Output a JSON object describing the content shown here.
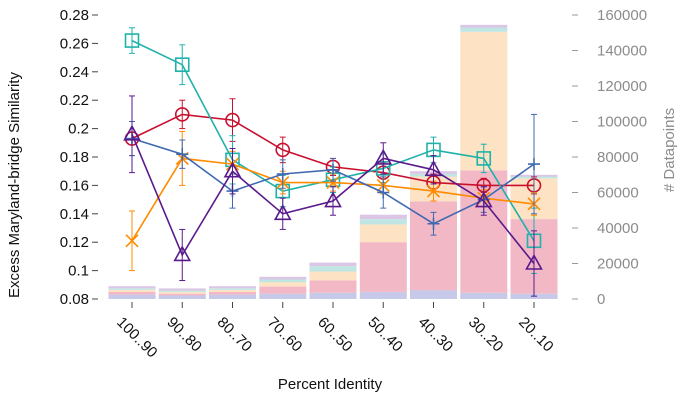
{
  "chart_data": {
    "type": "line",
    "title": "",
    "xlabel": "Percent Identity",
    "ylabel": "Excess Maryland-bridge Similarity",
    "y2label": "# Datapoints",
    "categories": [
      "100..90",
      "90..80",
      "80..70",
      "70..60",
      "60..50",
      "50..40",
      "40..30",
      "30..20",
      "20..10"
    ],
    "ylim": [
      0.08,
      0.28
    ],
    "yticks": [
      "0.08",
      "0.1",
      "0.12",
      "0.14",
      "0.16",
      "0.18",
      "0.2",
      "0.22",
      "0.24",
      "0.26",
      "0.28"
    ],
    "y2lim": [
      0,
      160000
    ],
    "y2ticks": [
      "0",
      "20000",
      "40000",
      "60000",
      "80000",
      "100000",
      "120000",
      "140000",
      "160000"
    ],
    "grid": false,
    "legend": "none",
    "series": [
      {
        "color": "#c8102e",
        "marker": "circle",
        "values": [
          0.193,
          0.21,
          0.206,
          0.185,
          0.173,
          0.169,
          0.162,
          0.16,
          0.16
        ],
        "errors": [
          0.012,
          0.01,
          0.015,
          0.009,
          0.006,
          0.007,
          0.006,
          0.005,
          0.006
        ]
      },
      {
        "color": "#20b2aa",
        "marker": "square",
        "values": [
          0.262,
          0.245,
          0.178,
          0.156,
          0.164,
          0.172,
          0.185,
          0.179,
          0.121
        ],
        "errors": [
          0.009,
          0.014,
          0.017,
          0.011,
          0.009,
          0.01,
          0.009,
          0.01,
          0.023
        ]
      },
      {
        "color": "#ff8c00",
        "marker": "x",
        "values": [
          0.121,
          0.179,
          0.175,
          0.162,
          0.162,
          0.16,
          0.156,
          0.151,
          0.147
        ],
        "errors": [
          0.021,
          0.019,
          0.009,
          0.008,
          0.006,
          0.006,
          0.007,
          0.006,
          0.008
        ]
      },
      {
        "color": "#4169b0",
        "marker": "plus",
        "values": [
          0.193,
          0.182,
          0.156,
          0.168,
          0.171,
          0.155,
          0.133,
          0.15,
          0.175
        ],
        "errors": [
          0.012,
          0.01,
          0.012,
          0.01,
          0.008,
          0.011,
          0.008,
          0.009,
          0.035
        ]
      },
      {
        "color": "#5a1a8c",
        "marker": "triangle",
        "values": [
          0.196,
          0.111,
          0.17,
          0.14,
          0.149,
          0.179,
          0.171,
          0.149,
          0.105
        ],
        "errors": [
          0.027,
          0.018,
          0.016,
          0.011,
          0.01,
          0.011,
          0.01,
          0.01,
          0.023
        ]
      }
    ],
    "bars": {
      "axis": "right",
      "segment_colors": [
        "#c6c9e8",
        "#f2b8c6",
        "#fde2c4",
        "#bfe6e2",
        "#dcc6e6"
      ],
      "stacks": [
        [
          2500,
          1500,
          1200,
          800,
          1200
        ],
        [
          2000,
          1000,
          1000,
          800,
          1200
        ],
        [
          2500,
          1500,
          1200,
          800,
          1200
        ],
        [
          3000,
          4000,
          2500,
          1500,
          1500
        ],
        [
          3500,
          7000,
          5000,
          3000,
          2000
        ],
        [
          4000,
          28000,
          10000,
          3000,
          2500
        ],
        [
          5000,
          50000,
          14000,
          1500,
          1500
        ],
        [
          3500,
          69000,
          78000,
          2500,
          1500
        ],
        [
          3000,
          42000,
          23000,
          1000,
          1000
        ]
      ]
    }
  }
}
